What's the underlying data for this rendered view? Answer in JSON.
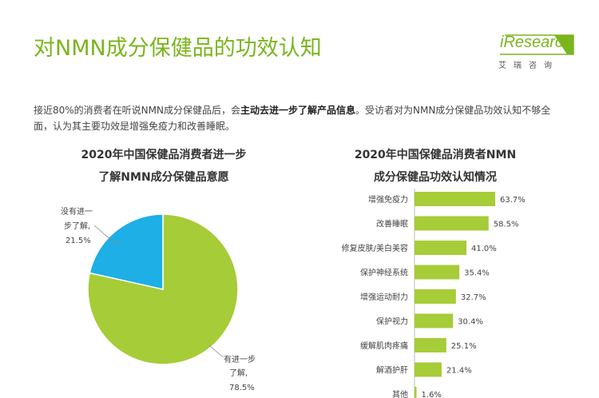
{
  "header": {
    "title": "对NMN成分保健品的功效认知",
    "logo_text": "iResearch",
    "logo_sub": "艾瑞咨询"
  },
  "intro": {
    "part1": "接近80%的消费者在听说NMN成分保健品后，会",
    "bold": "主动去进一步了解产品信息",
    "part2": "。受访者对为NMN成分保健品功效认知不够全面，认为其主要功效是增强免疫力和改善睡眠。"
  },
  "colors": {
    "green": "#a6cc38",
    "blue": "#1dafe5",
    "title_green": "#7ab51d"
  },
  "chart_data": [
    {
      "type": "pie",
      "title_line1": "2020年中国保健品消费者进一步",
      "title_line2": "了解NMN成分保健品意愿",
      "slices": [
        {
          "label_line1": "有进一步",
          "label_line2": "了解,",
          "value": 78.5,
          "value_label": "78.5%",
          "color": "#a6cc38"
        },
        {
          "label_line1": "没有进一",
          "label_line2": "步了解,",
          "value": 21.5,
          "value_label": "21.5%",
          "color": "#1dafe5"
        }
      ]
    },
    {
      "type": "bar",
      "orientation": "horizontal",
      "title_line1": "2020年中国保健品消费者NMN",
      "title_line2": "成分保健品功效认知情况",
      "categories": [
        "增强免疫力",
        "改善睡眠",
        "修复皮肤/美白美容",
        "保护神经系统",
        "增强运动耐力",
        "保护视力",
        "缓解肌肉疼痛",
        "解酒护肝",
        "其他"
      ],
      "values": [
        63.7,
        58.5,
        41.0,
        35.4,
        32.7,
        30.4,
        25.1,
        21.4,
        1.6
      ],
      "value_labels": [
        "63.7%",
        "58.5%",
        "41.0%",
        "35.4%",
        "32.7%",
        "30.4%",
        "25.1%",
        "21.4%",
        "1.6%"
      ],
      "color": "#a6cc38"
    }
  ]
}
